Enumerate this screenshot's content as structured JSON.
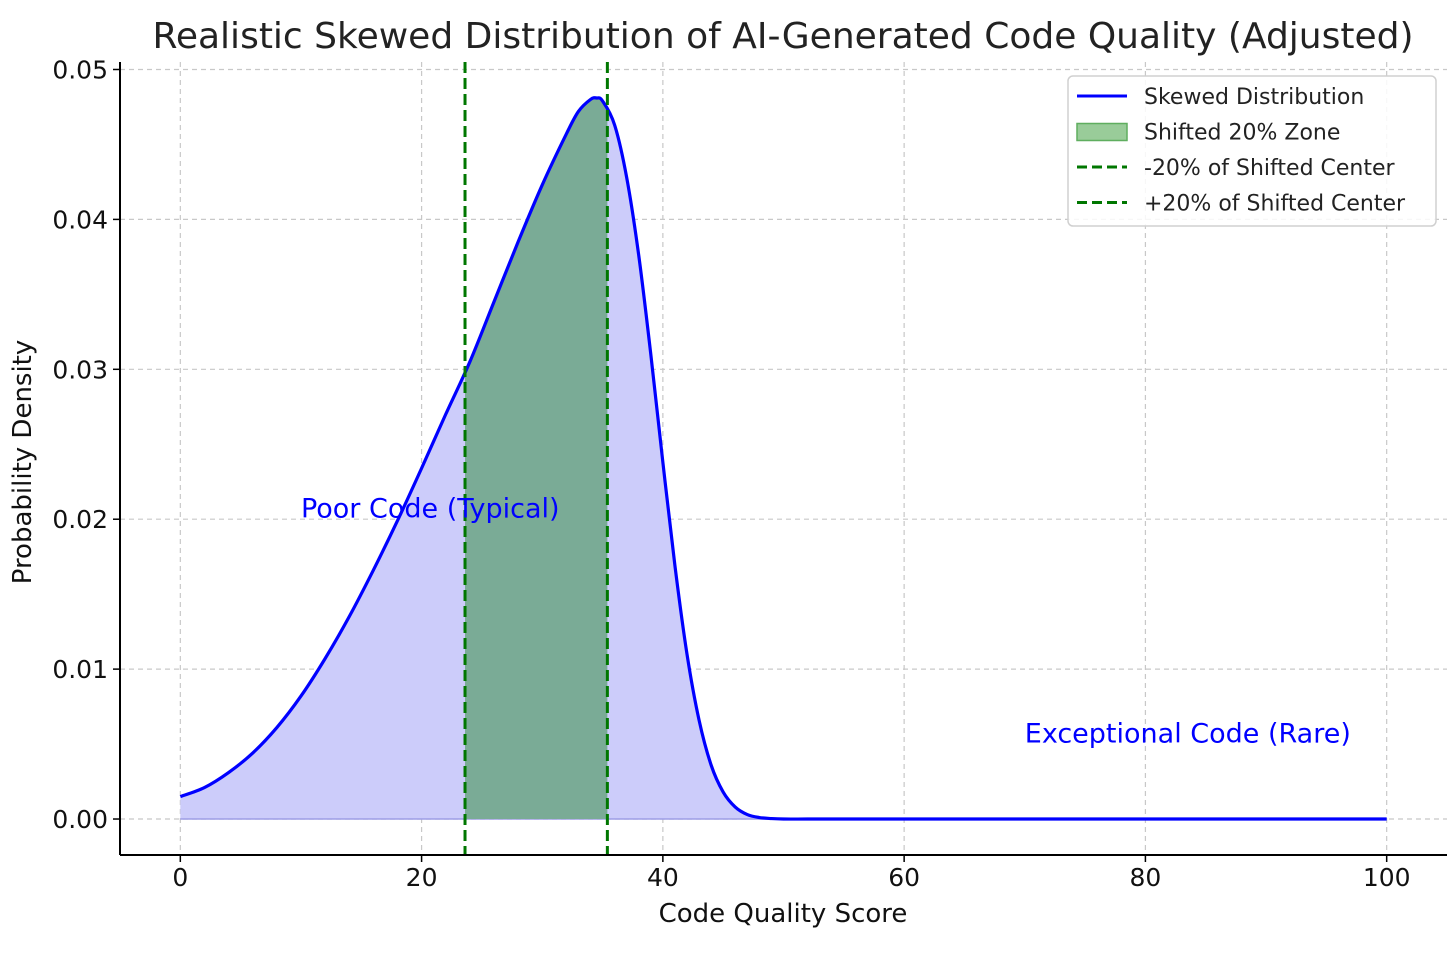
{
  "chart_data": {
    "type": "line",
    "title": "Realistic Skewed Distribution of AI-Generated Code Quality (Adjusted)",
    "xlabel": "Code Quality Score",
    "ylabel": "Probability Density",
    "xlim": [
      -5,
      105
    ],
    "ylim": [
      -0.0024,
      0.0505
    ],
    "xticks": [
      0,
      20,
      40,
      60,
      80,
      100
    ],
    "xtick_labels": [
      "0",
      "20",
      "40",
      "60",
      "80",
      "100"
    ],
    "yticks": [
      0.0,
      0.01,
      0.02,
      0.03,
      0.04,
      0.05
    ],
    "ytick_labels": [
      "0.00",
      "0.01",
      "0.02",
      "0.03",
      "0.04",
      "0.05"
    ],
    "grid": true,
    "legend_position": "top-right",
    "series": [
      {
        "name": "Skewed Distribution",
        "color": "#0000ff",
        "fill_color": "#ccccfa",
        "x": [
          0,
          2,
          4,
          6,
          8,
          10,
          12,
          14,
          16,
          18,
          20,
          22,
          24,
          26,
          28,
          30,
          32,
          33,
          34,
          34.5,
          35,
          36,
          37,
          38,
          39,
          40,
          41,
          42,
          43,
          44,
          45,
          46,
          47,
          48,
          49,
          50,
          52,
          55,
          60,
          70,
          80,
          90,
          100
        ],
        "y": [
          0.0015,
          0.0021,
          0.0031,
          0.0044,
          0.0061,
          0.0082,
          0.0107,
          0.0135,
          0.0166,
          0.0199,
          0.0234,
          0.027,
          0.0305,
          0.0345,
          0.0385,
          0.0423,
          0.0457,
          0.0472,
          0.048,
          0.0481,
          0.0479,
          0.0463,
          0.0428,
          0.0376,
          0.031,
          0.0238,
          0.0169,
          0.011,
          0.0066,
          0.0036,
          0.0018,
          0.0008,
          0.0003,
          0.0001,
          3e-05,
          0.0,
          0.0,
          0.0,
          0.0,
          0.0,
          0.0,
          0.0,
          0.0
        ]
      }
    ],
    "shaded_zone": {
      "name": "Shifted 20% Zone",
      "x_start": 23.6,
      "x_end": 35.4,
      "color": "#7aab96"
    },
    "vlines": [
      {
        "name": "-20% of Shifted Center",
        "x": 23.6,
        "color": "#007700"
      },
      {
        "name": "+20% of Shifted Center",
        "x": 35.4,
        "color": "#007700"
      }
    ],
    "annotations": [
      {
        "text": "Poor Code (Typical)",
        "x": 10,
        "y": 0.0201,
        "color": "#0000ff"
      },
      {
        "text": "Exceptional Code (Rare)",
        "x": 70,
        "y": 0.0051,
        "color": "#0000ff"
      }
    ],
    "legend": {
      "entries": [
        {
          "label": "Skewed Distribution",
          "kind": "line",
          "color": "#0000ff"
        },
        {
          "label": "Shifted 20% Zone",
          "kind": "patch",
          "color": "#99cc99"
        },
        {
          "label": "-20% of Shifted Center",
          "kind": "dashed",
          "color": "#007700"
        },
        {
          "label": "+20% of Shifted Center",
          "kind": "dashed",
          "color": "#007700"
        }
      ]
    }
  }
}
